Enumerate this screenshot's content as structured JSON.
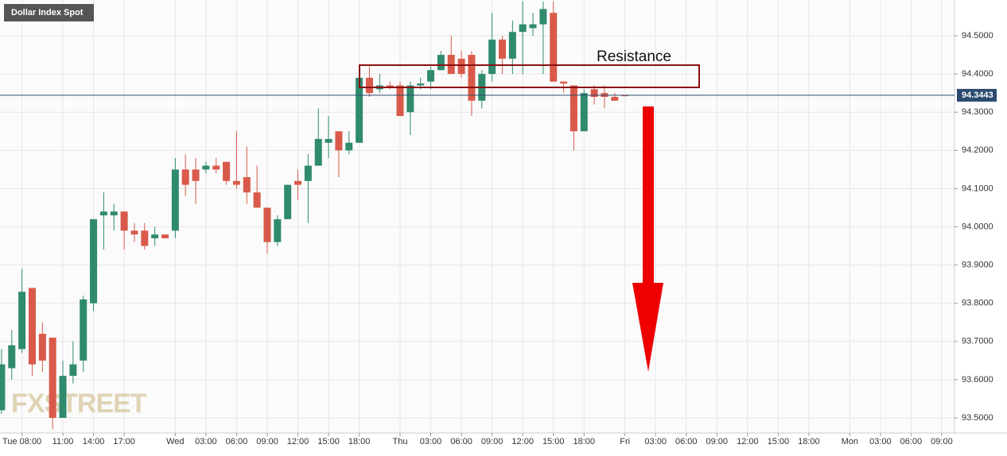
{
  "chart_data": {
    "type": "candlestick",
    "title": "Dollar Index Spot",
    "watermark": "FXSTREET",
    "annotation": "Resistance",
    "up_color": "#2f8a6e",
    "down_color": "#d95a4a",
    "grid": true,
    "x": [
      0,
      1,
      2,
      3,
      4,
      5,
      6,
      7,
      8,
      9,
      10,
      11,
      12,
      13,
      14,
      15,
      16,
      17,
      18,
      19,
      20,
      21,
      22,
      23,
      24,
      25,
      26,
      27,
      28,
      29,
      30,
      31,
      32,
      33,
      34,
      35,
      36,
      37,
      38,
      39,
      40,
      41,
      42,
      43,
      44,
      45,
      46,
      47,
      48,
      49,
      50,
      51,
      52,
      53,
      54,
      55,
      56,
      57,
      58,
      59,
      60,
      61
    ],
    "open": [
      93.52,
      93.63,
      93.68,
      93.84,
      93.72,
      93.71,
      93.5,
      93.61,
      93.65,
      93.8,
      94.03,
      94.03,
      94.04,
      93.99,
      93.99,
      93.97,
      93.98,
      93.99,
      94.15,
      94.15,
      94.15,
      94.16,
      94.17,
      94.12,
      94.13,
      94.09,
      94.05,
      93.96,
      94.02,
      94.12,
      94.12,
      94.16,
      94.22,
      94.25,
      94.2,
      94.22,
      94.39,
      94.36,
      94.37,
      94.37,
      94.3,
      94.37,
      94.38,
      94.41,
      94.45,
      94.44,
      94.45,
      94.33,
      94.4,
      94.49,
      94.44,
      94.51,
      94.52,
      94.53,
      94.56,
      94.38,
      94.37,
      94.25,
      94.36,
      94.35,
      94.34,
      94.345
    ],
    "high": [
      93.68,
      93.73,
      93.89,
      93.84,
      93.75,
      93.71,
      93.65,
      93.7,
      93.82,
      94.02,
      94.09,
      94.06,
      94.04,
      94.01,
      94.01,
      94.0,
      93.98,
      94.18,
      94.19,
      94.18,
      94.17,
      94.18,
      94.17,
      94.25,
      94.21,
      94.16,
      94.05,
      94.03,
      94.11,
      94.15,
      94.19,
      94.31,
      94.29,
      94.25,
      94.25,
      94.39,
      94.42,
      94.4,
      94.38,
      94.38,
      94.38,
      94.39,
      94.42,
      94.46,
      94.5,
      94.46,
      94.46,
      94.41,
      94.56,
      94.5,
      94.54,
      94.59,
      94.56,
      94.59,
      94.59,
      94.38,
      94.37,
      94.36,
      94.37,
      94.37,
      94.35,
      94.345
    ],
    "low": [
      93.51,
      93.6,
      93.67,
      93.61,
      93.62,
      93.47,
      93.5,
      93.59,
      93.62,
      93.78,
      93.94,
      93.99,
      93.94,
      93.96,
      93.94,
      93.95,
      93.97,
      93.97,
      94.08,
      94.06,
      94.14,
      94.14,
      94.11,
      94.1,
      94.06,
      94.05,
      93.93,
      93.95,
      94.02,
      94.07,
      94.01,
      94.16,
      94.18,
      94.13,
      94.19,
      94.22,
      94.34,
      94.35,
      94.36,
      94.29,
      94.24,
      94.36,
      94.36,
      94.41,
      94.4,
      94.39,
      94.29,
      94.31,
      94.38,
      94.4,
      94.4,
      94.4,
      94.5,
      94.4,
      94.38,
      94.35,
      94.2,
      94.25,
      94.32,
      94.31,
      94.33,
      94.344
    ],
    "close": [
      93.64,
      93.69,
      93.83,
      93.64,
      93.65,
      93.5,
      93.61,
      93.64,
      93.81,
      94.02,
      94.04,
      94.04,
      93.99,
      93.98,
      93.95,
      93.98,
      93.97,
      94.15,
      94.11,
      94.12,
      94.16,
      94.15,
      94.12,
      94.11,
      94.09,
      94.05,
      93.96,
      94.02,
      94.11,
      94.11,
      94.16,
      94.23,
      94.23,
      94.2,
      94.22,
      94.39,
      94.35,
      94.37,
      94.365,
      94.29,
      94.37,
      94.375,
      94.41,
      94.45,
      94.4,
      94.4,
      94.33,
      94.4,
      94.49,
      94.44,
      94.51,
      94.53,
      94.53,
      94.57,
      94.38,
      94.375,
      94.25,
      94.35,
      94.34,
      94.34,
      94.33,
      94.344
    ],
    "last_price": 94.3443,
    "xlim": [
      -0.15,
      93.25
    ],
    "xticks": [
      {
        "value": 2,
        "label": "Tue 08:00"
      },
      {
        "value": 6,
        "label": "11:00"
      },
      {
        "value": 9,
        "label": "14:00"
      },
      {
        "value": 12,
        "label": "17:00"
      },
      {
        "value": 17,
        "label": "Wed"
      },
      {
        "value": 20,
        "label": "03:00"
      },
      {
        "value": 23,
        "label": "06:00"
      },
      {
        "value": 26,
        "label": "09:00"
      },
      {
        "value": 29,
        "label": "12:00"
      },
      {
        "value": 32,
        "label": "15:00"
      },
      {
        "value": 35,
        "label": "18:00"
      },
      {
        "value": 39,
        "label": "Thu"
      },
      {
        "value": 42,
        "label": "03:00"
      },
      {
        "value": 45,
        "label": "06:00"
      },
      {
        "value": 48,
        "label": "09:00"
      },
      {
        "value": 51,
        "label": "12:00"
      },
      {
        "value": 54,
        "label": "15:00"
      },
      {
        "value": 57,
        "label": "18:00"
      },
      {
        "value": 61,
        "label": "Fri"
      },
      {
        "value": 64,
        "label": "03:00"
      },
      {
        "value": 67,
        "label": "06:00"
      },
      {
        "value": 70,
        "label": "09:00"
      },
      {
        "value": 73,
        "label": "12:00"
      },
      {
        "value": 76,
        "label": "15:00"
      },
      {
        "value": 79,
        "label": "18:00"
      },
      {
        "value": 83,
        "label": "Mon"
      },
      {
        "value": 86,
        "label": "03:00"
      },
      {
        "value": 89,
        "label": "06:00"
      },
      {
        "value": 92,
        "label": "09:00"
      }
    ],
    "ylim": [
      93.4605,
      94.5936
    ],
    "yticks": [
      {
        "value": 93.5,
        "label": "93.5000"
      },
      {
        "value": 93.6,
        "label": "93.6000"
      },
      {
        "value": 93.7,
        "label": "93.7000"
      },
      {
        "value": 93.8,
        "label": "93.8000"
      },
      {
        "value": 93.9,
        "label": "93.9000"
      },
      {
        "value": 94.0,
        "label": "94.0000"
      },
      {
        "value": 94.1,
        "label": "94.1000"
      },
      {
        "value": 94.2,
        "label": "94.2000"
      },
      {
        "value": 94.3,
        "label": "94.3000"
      },
      {
        "value": 94.4,
        "label": "94.4000"
      },
      {
        "value": 94.5,
        "label": "94.5000"
      }
    ]
  }
}
